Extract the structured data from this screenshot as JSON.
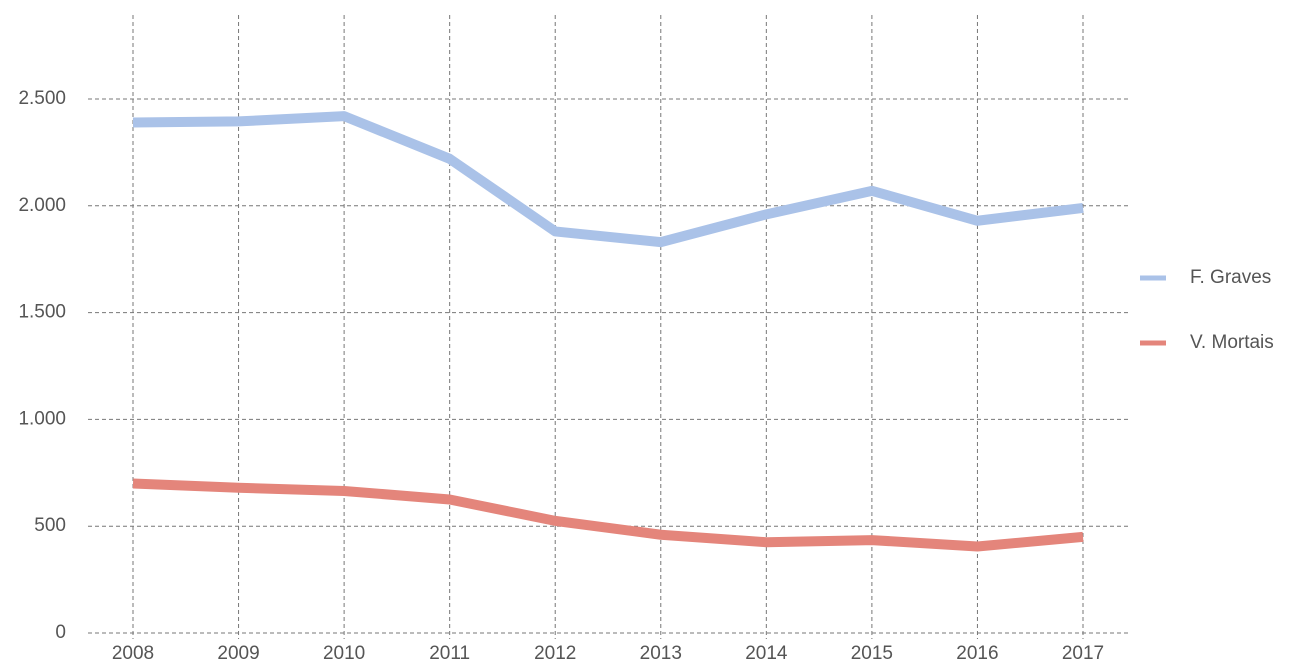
{
  "chart_data": {
    "type": "line",
    "x": [
      2008,
      2009,
      2010,
      2011,
      2012,
      2013,
      2014,
      2015,
      2016,
      2017
    ],
    "xlim": [
      2008,
      2017
    ],
    "series": [
      {
        "name": "F. Graves",
        "color": "#aac2e8",
        "values": [
          2390,
          2395,
          2420,
          2220,
          1880,
          1830,
          1960,
          2070,
          1930,
          1990
        ]
      },
      {
        "name": "V. Mortais",
        "color": "#e4857b",
        "values": [
          700,
          680,
          665,
          625,
          525,
          460,
          425,
          435,
          405,
          450
        ]
      }
    ],
    "ylim": [
      0,
      2500
    ],
    "yticks": [
      0,
      500,
      {
        "value": 1000,
        "label": "1.000"
      },
      {
        "value": 1500,
        "label": "1.500"
      },
      {
        "value": 2000,
        "label": "2.000"
      },
      {
        "value": 2500,
        "label": "2.500"
      }
    ],
    "grid": true,
    "legend": "right"
  }
}
